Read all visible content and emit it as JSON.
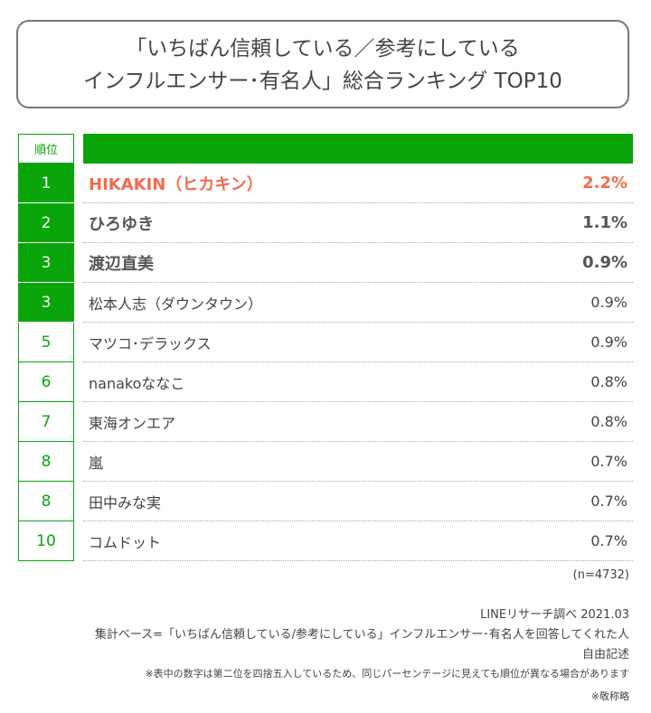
{
  "header": {
    "title": [
      "「いちばん信頼している／参考にしている",
      "インフルエンサー･有名人」総合ランキング TOP10"
    ]
  },
  "table": {
    "columns": [
      "順位"
    ],
    "rows": [
      [
        "1",
        "HIKAKIN（ヒカキン）",
        "2.2%"
      ],
      [
        "2",
        "ひろゆき",
        "1.1%"
      ],
      [
        "3",
        "渡辺直美",
        "0.9%"
      ],
      [
        "3",
        "松本人志（ダウンタウン）",
        "0.9%"
      ],
      [
        "5",
        "マツコ･デラックス",
        "0.9%"
      ],
      [
        "6",
        "nanakoななこ",
        "0.8%"
      ],
      [
        "7",
        "東海オンエア",
        "0.8%"
      ],
      [
        "8",
        "嵐",
        "0.7%"
      ],
      [
        "8",
        "田中みな実",
        "0.7%"
      ],
      [
        "10",
        "コムドット",
        "0.7%"
      ]
    ]
  },
  "notes": [
    "(n=4732)",
    "LINEリサーチ調べ 2021.03",
    "集計ベース=「いちばん信頼している/参考にしている」インフルエンサー･有名人を回答してくれた人",
    "自由記述",
    "※表中の数字は第二位を四捨五入しているため、同じパーセンテージに見えても順位が異なる場合があります",
    "※敬称略"
  ]
}
